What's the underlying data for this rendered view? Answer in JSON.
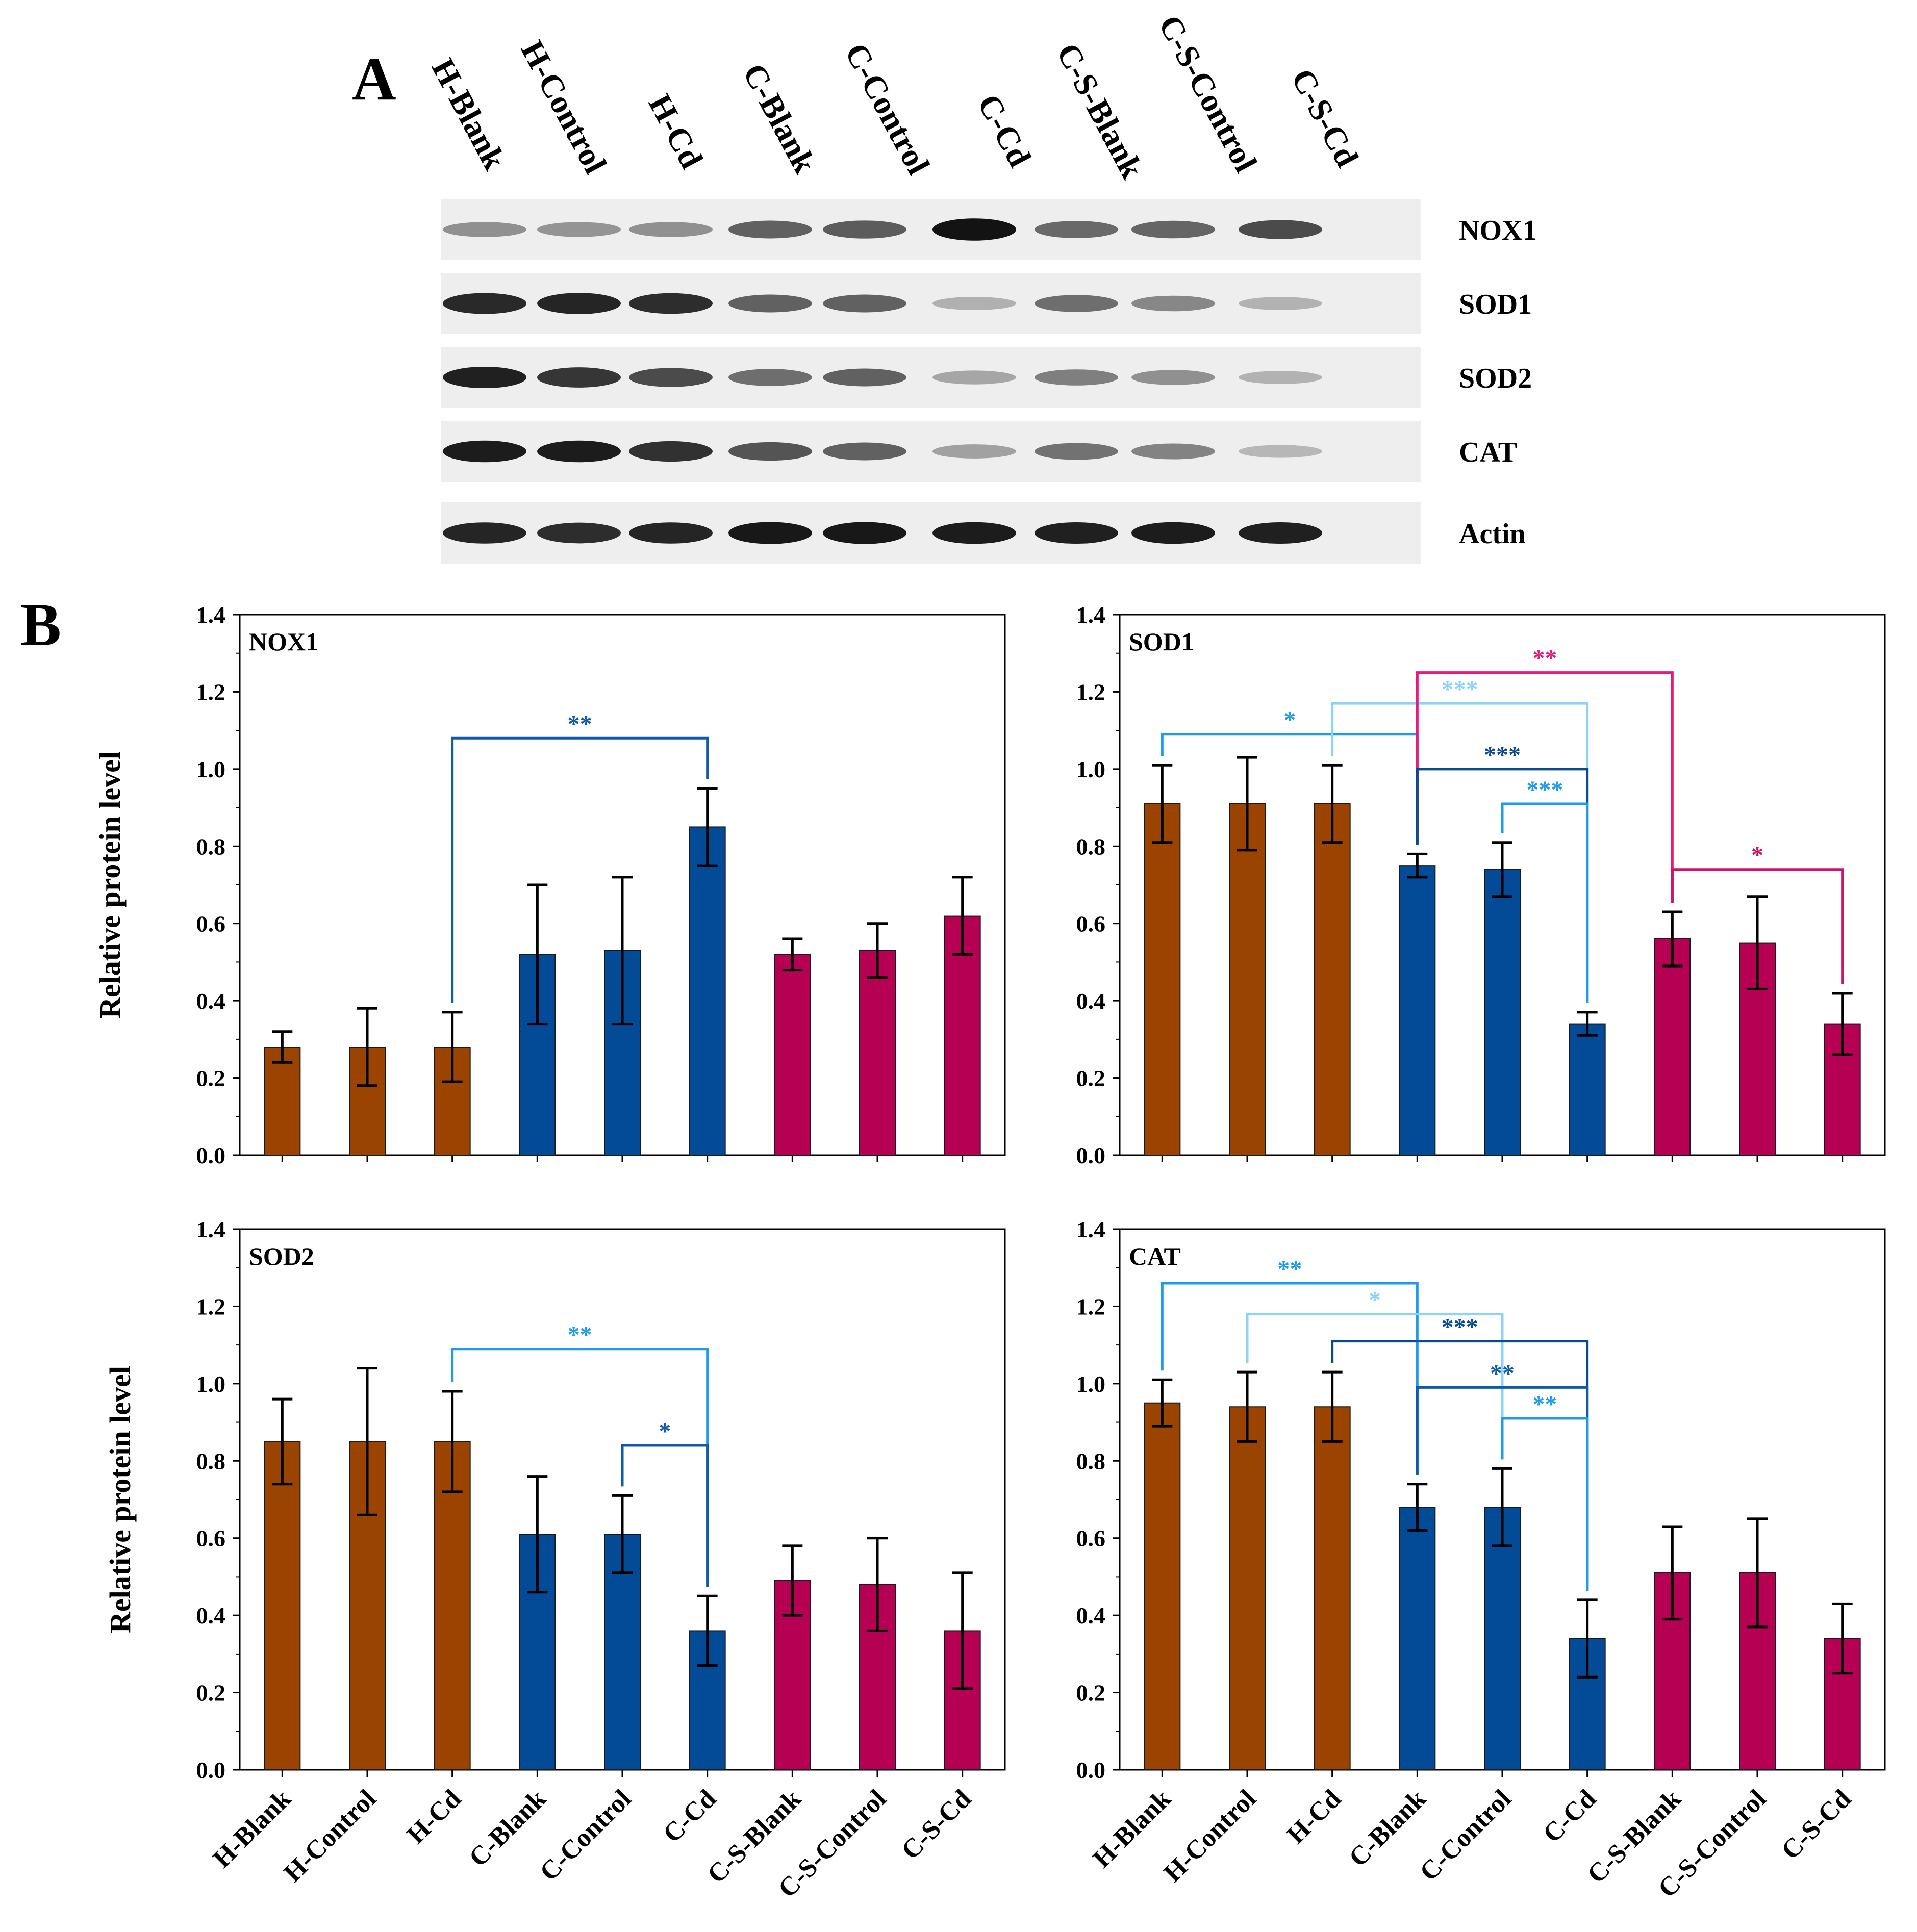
{
  "figure": {
    "panel_a_letter": "A",
    "panel_b_letter": "B"
  },
  "blot": {
    "lanes": [
      "H-Blank",
      "H-Control",
      "H-Cd",
      "C-Blank",
      "C-Control",
      "C-Cd",
      "C-S-Blank",
      "C-S-Control",
      "C-S-Cd"
    ],
    "proteins": [
      {
        "name": "NOX1",
        "intensity": [
          0.4,
          0.38,
          0.4,
          0.62,
          0.64,
          0.98,
          0.58,
          0.6,
          0.72
        ]
      },
      {
        "name": "SOD1",
        "intensity": [
          0.88,
          0.9,
          0.86,
          0.62,
          0.62,
          0.25,
          0.56,
          0.44,
          0.24
        ]
      },
      {
        "name": "SOD2",
        "intensity": [
          0.92,
          0.82,
          0.72,
          0.56,
          0.62,
          0.3,
          0.48,
          0.4,
          0.24
        ]
      },
      {
        "name": "CAT",
        "intensity": [
          0.94,
          0.94,
          0.84,
          0.68,
          0.62,
          0.32,
          0.54,
          0.46,
          0.22
        ]
      },
      {
        "name": "Actin",
        "intensity": [
          0.9,
          0.86,
          0.9,
          0.96,
          0.96,
          0.94,
          0.92,
          0.94,
          0.92
        ]
      }
    ]
  },
  "colors": {
    "h_group": "#9B4401",
    "c_group": "#034A97",
    "cs_group": "#B60054",
    "sig_dark": "#0A4A8F",
    "sig_mid": "#0F5BAA",
    "sig_bright": "#1F9CE8",
    "sig_light": "#8DD3F7",
    "sig_pink": "#E8197A",
    "sig_magenta": "#CC1567"
  },
  "chart_data": [
    {
      "type": "bar",
      "title": "NOX1",
      "xlabel": "",
      "ylabel": "Relative protein level",
      "ylim": [
        0,
        1.4
      ],
      "yticks": [
        "0.0",
        "0.2",
        "0.4",
        "0.6",
        "0.8",
        "1.0",
        "1.2",
        "1.4"
      ],
      "categories": [
        "H-Blank",
        "H-Control",
        "H-Cd",
        "C-Blank",
        "C-Control",
        "C-Cd",
        "C-S-Blank",
        "C-S-Control",
        "C-S-Cd"
      ],
      "values": [
        0.28,
        0.28,
        0.28,
        0.52,
        0.53,
        0.85,
        0.52,
        0.53,
        0.62
      ],
      "errors": [
        0.04,
        0.1,
        0.09,
        0.18,
        0.19,
        0.1,
        0.04,
        0.07,
        0.1
      ],
      "group_colors": [
        "h_group",
        "h_group",
        "h_group",
        "c_group",
        "c_group",
        "c_group",
        "cs_group",
        "cs_group",
        "cs_group"
      ],
      "show_x_labels": false,
      "significance": [
        {
          "from": 2,
          "to": 5,
          "y": 1.08,
          "label": "**",
          "color": "sig_mid"
        }
      ]
    },
    {
      "type": "bar",
      "title": "SOD1",
      "xlabel": "",
      "ylabel": "",
      "ylim": [
        0,
        1.4
      ],
      "yticks": [
        "0.0",
        "0.2",
        "0.4",
        "0.6",
        "0.8",
        "1.0",
        "1.2",
        "1.4"
      ],
      "categories": [
        "H-Blank",
        "H-Control",
        "H-Cd",
        "C-Blank",
        "C-Control",
        "C-Cd",
        "C-S-Blank",
        "C-S-Control",
        "C-S-Cd"
      ],
      "values": [
        0.91,
        0.91,
        0.91,
        0.75,
        0.74,
        0.34,
        0.56,
        0.55,
        0.34
      ],
      "errors": [
        0.1,
        0.12,
        0.1,
        0.03,
        0.07,
        0.03,
        0.07,
        0.12,
        0.08
      ],
      "group_colors": [
        "h_group",
        "h_group",
        "h_group",
        "c_group",
        "c_group",
        "c_group",
        "cs_group",
        "cs_group",
        "cs_group"
      ],
      "show_x_labels": false,
      "significance": [
        {
          "from": 0,
          "to": 3,
          "y": 1.09,
          "label": "*",
          "color": "sig_bright"
        },
        {
          "from": 2,
          "to": 5,
          "y": 1.17,
          "label": "***",
          "color": "sig_light"
        },
        {
          "from": 3,
          "to": 6,
          "y": 1.25,
          "label": "**",
          "color": "sig_pink"
        },
        {
          "from": 3,
          "to": 5,
          "y": 1.0,
          "label": "***",
          "color": "sig_dark"
        },
        {
          "from": 4,
          "to": 5,
          "y": 0.91,
          "label": "***",
          "color": "sig_bright"
        },
        {
          "from": 6,
          "to": 8,
          "y": 0.74,
          "label": "*",
          "color": "sig_magenta"
        }
      ]
    },
    {
      "type": "bar",
      "title": "SOD2",
      "xlabel": "",
      "ylabel": "Relative protein level",
      "ylim": [
        0,
        1.4
      ],
      "yticks": [
        "0.0",
        "0.2",
        "0.4",
        "0.6",
        "0.8",
        "1.0",
        "1.2",
        "1.4"
      ],
      "categories": [
        "H-Blank",
        "H-Control",
        "H-Cd",
        "C-Blank",
        "C-Control",
        "C-Cd",
        "C-S-Blank",
        "C-S-Control",
        "C-S-Cd"
      ],
      "values": [
        0.85,
        0.85,
        0.85,
        0.61,
        0.61,
        0.36,
        0.49,
        0.48,
        0.36
      ],
      "errors": [
        0.11,
        0.19,
        0.13,
        0.15,
        0.1,
        0.09,
        0.09,
        0.12,
        0.15
      ],
      "group_colors": [
        "h_group",
        "h_group",
        "h_group",
        "c_group",
        "c_group",
        "c_group",
        "cs_group",
        "cs_group",
        "cs_group"
      ],
      "show_x_labels": true,
      "significance": [
        {
          "from": 2,
          "to": 5,
          "y": 1.09,
          "label": "**",
          "color": "sig_bright"
        },
        {
          "from": 4,
          "to": 5,
          "y": 0.84,
          "label": "*",
          "color": "sig_mid"
        }
      ]
    },
    {
      "type": "bar",
      "title": "CAT",
      "xlabel": "",
      "ylabel": "",
      "ylim": [
        0,
        1.4
      ],
      "yticks": [
        "0.0",
        "0.2",
        "0.4",
        "0.6",
        "0.8",
        "1.0",
        "1.2",
        "1.4"
      ],
      "categories": [
        "H-Blank",
        "H-Control",
        "H-Cd",
        "C-Blank",
        "C-Control",
        "C-Cd",
        "C-S-Blank",
        "C-S-Control",
        "C-S-Cd"
      ],
      "values": [
        0.95,
        0.94,
        0.94,
        0.68,
        0.68,
        0.34,
        0.51,
        0.51,
        0.34
      ],
      "errors": [
        0.06,
        0.09,
        0.09,
        0.06,
        0.1,
        0.1,
        0.12,
        0.14,
        0.09
      ],
      "group_colors": [
        "h_group",
        "h_group",
        "h_group",
        "c_group",
        "c_group",
        "c_group",
        "cs_group",
        "cs_group",
        "cs_group"
      ],
      "show_x_labels": true,
      "significance": [
        {
          "from": 0,
          "to": 3,
          "y": 1.26,
          "label": "**",
          "color": "sig_bright"
        },
        {
          "from": 1,
          "to": 4,
          "y": 1.18,
          "label": "*",
          "color": "sig_light"
        },
        {
          "from": 2,
          "to": 5,
          "y": 1.11,
          "label": "***",
          "color": "sig_dark"
        },
        {
          "from": 3,
          "to": 5,
          "y": 0.99,
          "label": "**",
          "color": "sig_mid"
        },
        {
          "from": 4,
          "to": 5,
          "y": 0.91,
          "label": "**",
          "color": "sig_bright"
        }
      ]
    }
  ]
}
